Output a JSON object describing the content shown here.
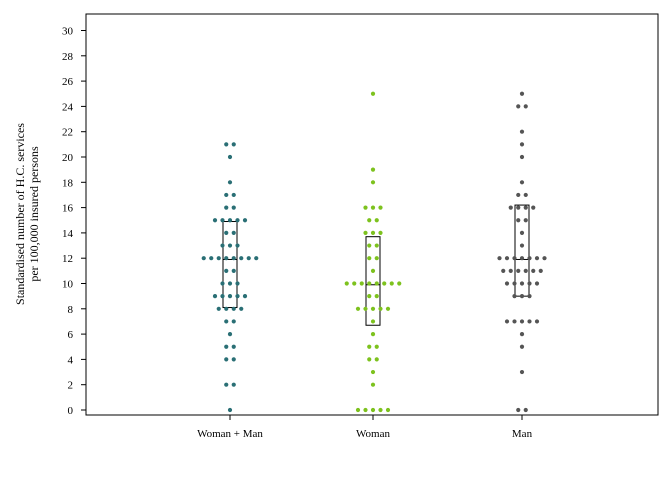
{
  "chart_data": {
    "type": "scatter",
    "subtype": "dot-strip-with-interquartile-box",
    "title": "",
    "xlabel": "",
    "ylabel_lines": [
      "Standardised number of H.C. services",
      "per 100,000 insured persons"
    ],
    "ylim": [
      0,
      31
    ],
    "yticks": [
      0,
      2,
      4,
      6,
      8,
      10,
      12,
      14,
      16,
      18,
      20,
      22,
      24,
      26,
      28,
      30
    ],
    "grid": false,
    "legend": "none",
    "categories": [
      "Woman + Man",
      "Woman",
      "Man"
    ],
    "series": [
      {
        "category": "Woman + Man",
        "color": "#2a6f75",
        "box": {
          "q1": 8.1,
          "median": 11.9,
          "q3": 14.9
        },
        "points": [
          0,
          2,
          2,
          4,
          4,
          5,
          5,
          6,
          7,
          7,
          8,
          8,
          8,
          8,
          9,
          9,
          9,
          9,
          9,
          10,
          10,
          10,
          11,
          11,
          12,
          12,
          12,
          12,
          12,
          12,
          12,
          12,
          13,
          13,
          13,
          14,
          14,
          15,
          15,
          15,
          15,
          15,
          16,
          16,
          17,
          17,
          18,
          20,
          21,
          21
        ]
      },
      {
        "category": "Woman",
        "color": "#7dc21e",
        "box": {
          "q1": 6.7,
          "median": 9.9,
          "q3": 13.7
        },
        "points": [
          0,
          0,
          0,
          0,
          0,
          2,
          3,
          4,
          4,
          5,
          5,
          6,
          7,
          8,
          8,
          8,
          8,
          8,
          9,
          9,
          10,
          10,
          10,
          10,
          10,
          10,
          10,
          10,
          11,
          12,
          12,
          13,
          13,
          14,
          14,
          14,
          15,
          15,
          16,
          16,
          16,
          18,
          19,
          25
        ]
      },
      {
        "category": "Man",
        "color": "#555555",
        "box": {
          "q1": 9.0,
          "median": 11.9,
          "q3": 16.2
        },
        "points": [
          0,
          0,
          3,
          5,
          6,
          7,
          7,
          7,
          7,
          7,
          9,
          9,
          9,
          10,
          10,
          10,
          10,
          10,
          11,
          11,
          11,
          11,
          11,
          11,
          12,
          12,
          12,
          12,
          12,
          12,
          12,
          13,
          14,
          15,
          15,
          16,
          16,
          16,
          16,
          17,
          17,
          18,
          20,
          21,
          22,
          24,
          24,
          25
        ]
      }
    ]
  }
}
